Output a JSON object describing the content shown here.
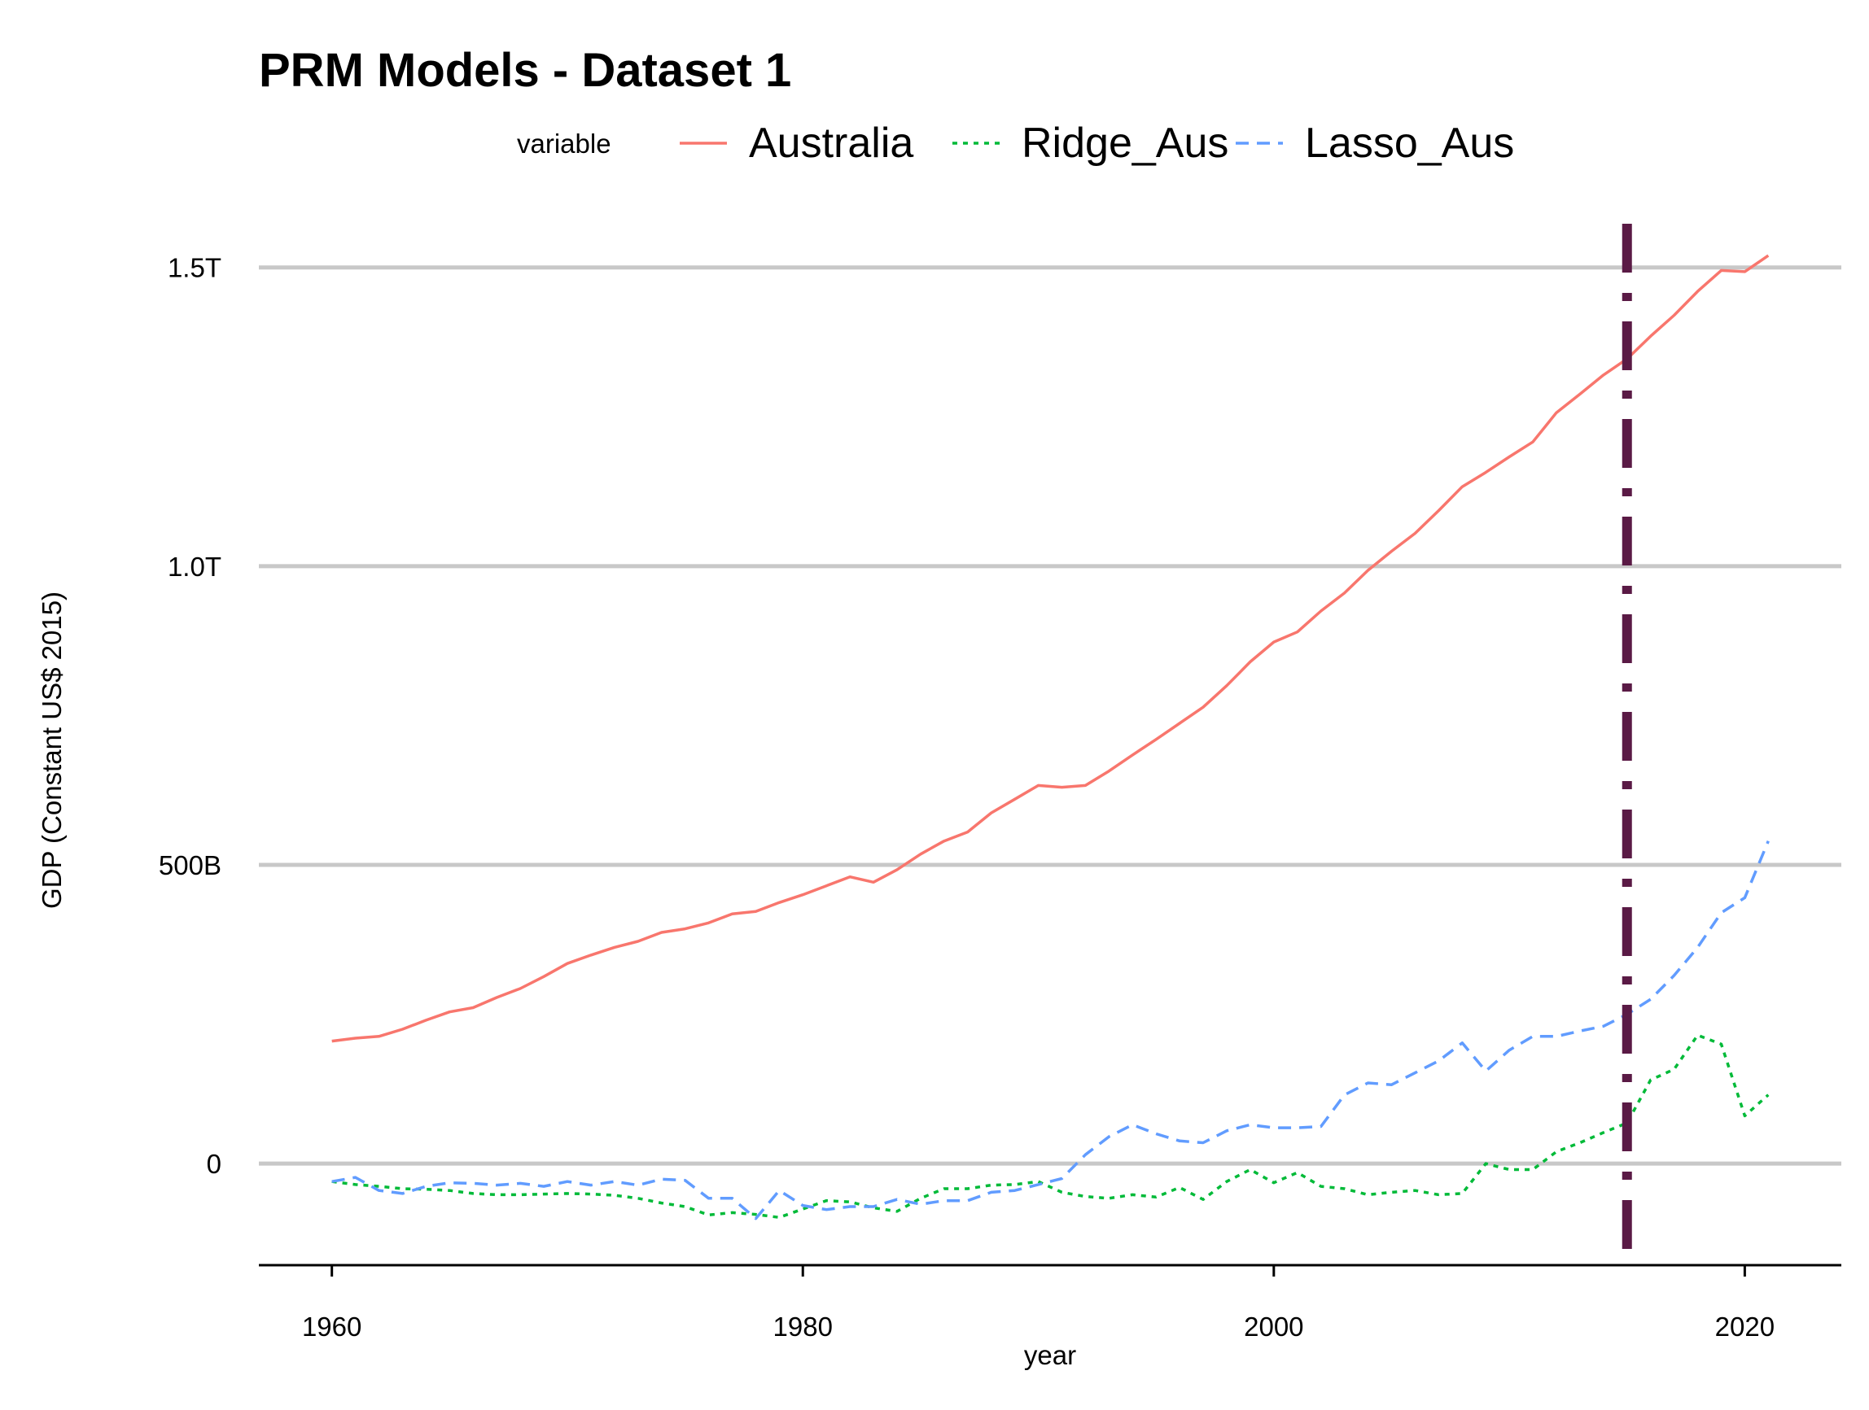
{
  "chart_data": {
    "type": "line",
    "title": "PRM Models - Dataset 1",
    "xlabel": "year",
    "ylabel": "GDP (Constant US$ 2015)",
    "xlim": [
      1956.9,
      2024.1
    ],
    "ylim": [
      -170000000000,
      1580000000000
    ],
    "x_ticks": [
      1960,
      1980,
      2000,
      2020
    ],
    "x_tick_labels": [
      "1960",
      "1980",
      "2000",
      "2020"
    ],
    "y_ticks": [
      0,
      500000000000,
      1000000000000,
      1500000000000
    ],
    "y_tick_labels": [
      "0",
      "500B",
      "1.0T",
      "1.5T"
    ],
    "grid": "horizontal major",
    "legend": {
      "title": "variable",
      "position": "top",
      "entries": [
        "Australia",
        "Ridge_Aus",
        "Lasso_Aus"
      ]
    },
    "vline": {
      "x": 2015,
      "color": "#5a1a45",
      "style": "dashdot"
    },
    "x": [
      1960,
      1961,
      1962,
      1963,
      1964,
      1965,
      1966,
      1967,
      1968,
      1969,
      1970,
      1971,
      1972,
      1973,
      1974,
      1975,
      1976,
      1977,
      1978,
      1979,
      1980,
      1981,
      1982,
      1983,
      1984,
      1985,
      1986,
      1987,
      1988,
      1989,
      1990,
      1991,
      1992,
      1993,
      1994,
      1995,
      1996,
      1997,
      1998,
      1999,
      2000,
      2001,
      2002,
      2003,
      2004,
      2005,
      2006,
      2007,
      2008,
      2009,
      2010,
      2011,
      2012,
      2013,
      2014,
      2015,
      2016,
      2017,
      2018,
      2019,
      2020,
      2021
    ],
    "series": [
      {
        "name": "Australia",
        "color": "#f8766d",
        "dash": "solid",
        "values": [
          205000000000,
          210000000000,
          213000000000,
          225000000000,
          240000000000,
          254000000000,
          261000000000,
          278000000000,
          293000000000,
          313000000000,
          335000000000,
          349000000000,
          362000000000,
          372000000000,
          387000000000,
          393000000000,
          403000000000,
          418000000000,
          422000000000,
          437000000000,
          450000000000,
          465000000000,
          480000000000,
          471000000000,
          492000000000,
          518000000000,
          540000000000,
          555000000000,
          587000000000,
          610000000000,
          633000000000,
          630000000000,
          633000000000,
          657000000000,
          684000000000,
          710000000000,
          737000000000,
          764000000000,
          800000000000,
          840000000000,
          873000000000,
          890000000000,
          925000000000,
          955000000000,
          993000000000,
          1025000000000,
          1055000000000,
          1093000000000,
          1133000000000,
          1157000000000,
          1183000000000,
          1208000000000,
          1257000000000,
          1288000000000,
          1320000000000,
          1347000000000,
          1385000000000,
          1420000000000,
          1460000000000,
          1495000000000,
          1493000000000,
          1520000000000
        ]
      },
      {
        "name": "Ridge_Aus",
        "color": "#00ba38",
        "dash": "dotted",
        "values": [
          -30000000000,
          -35000000000,
          -38000000000,
          -42000000000,
          -43000000000,
          -45000000000,
          -50000000000,
          -52000000000,
          -52000000000,
          -51000000000,
          -50000000000,
          -51000000000,
          -53000000000,
          -58000000000,
          -66000000000,
          -72000000000,
          -86000000000,
          -82000000000,
          -85000000000,
          -90000000000,
          -76000000000,
          -62000000000,
          -64000000000,
          -74000000000,
          -80000000000,
          -58000000000,
          -42000000000,
          -42000000000,
          -36000000000,
          -35000000000,
          -30000000000,
          -48000000000,
          -55000000000,
          -58000000000,
          -52000000000,
          -56000000000,
          -40000000000,
          -60000000000,
          -30000000000,
          -10000000000,
          -32000000000,
          -15000000000,
          -38000000000,
          -42000000000,
          -52000000000,
          -48000000000,
          -45000000000,
          -52000000000,
          -50000000000,
          0,
          -10000000000,
          -10000000000,
          20000000000,
          35000000000,
          52000000000,
          68000000000,
          140000000000,
          158000000000,
          215000000000,
          200000000000,
          80000000000,
          115000000000
        ]
      },
      {
        "name": "Lasso_Aus",
        "color": "#619cff",
        "dash": "dashed",
        "values": [
          -30000000000,
          -23000000000,
          -45000000000,
          -50000000000,
          -38000000000,
          -32000000000,
          -33000000000,
          -36000000000,
          -33000000000,
          -38000000000,
          -30000000000,
          -36000000000,
          -30000000000,
          -36000000000,
          -26000000000,
          -28000000000,
          -58000000000,
          -58000000000,
          -92000000000,
          -45000000000,
          -70000000000,
          -77000000000,
          -72000000000,
          -72000000000,
          -60000000000,
          -68000000000,
          -62000000000,
          -62000000000,
          -48000000000,
          -45000000000,
          -35000000000,
          -25000000000,
          15000000000,
          45000000000,
          65000000000,
          50000000000,
          38000000000,
          35000000000,
          55000000000,
          65000000000,
          60000000000,
          60000000000,
          62000000000,
          115000000000,
          135000000000,
          132000000000,
          152000000000,
          172000000000,
          202000000000,
          155000000000,
          190000000000,
          213000000000,
          213000000000,
          222000000000,
          230000000000,
          250000000000,
          275000000000,
          315000000000,
          362000000000,
          420000000000,
          445000000000,
          540000000000
        ]
      }
    ]
  }
}
